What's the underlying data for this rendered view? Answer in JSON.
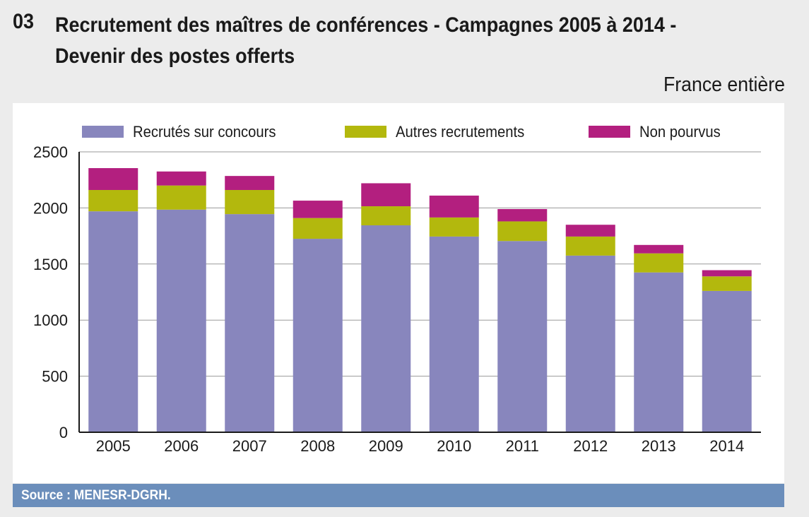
{
  "header": {
    "figure_number": "03",
    "title_line1": "Recrutement des maîtres de conférences - Campagnes 2005 à 2014 -",
    "title_line2": "Devenir des postes offerts",
    "subtitle": "France entière"
  },
  "footer": {
    "source": "Source : MENESR-DGRH."
  },
  "chart_data": {
    "type": "bar",
    "stacked": true,
    "title": "Recrutement des maîtres de conférences - Campagnes 2005 à 2014 - Devenir des postes offerts",
    "subtitle": "France entière",
    "xlabel": "",
    "ylabel": "",
    "ylim": [
      0,
      2500
    ],
    "yticks": [
      "0",
      "500",
      "1000",
      "1500",
      "2000",
      "2500"
    ],
    "grid": true,
    "legend_position": "top",
    "categories": [
      "2005",
      "2006",
      "2007",
      "2008",
      "2009",
      "2010",
      "2011",
      "2012",
      "2013",
      "2014"
    ],
    "series": [
      {
        "name": "Recrutés sur concours",
        "color": "#8886bd",
        "values": [
          1970,
          1985,
          1945,
          1725,
          1845,
          1745,
          1705,
          1575,
          1425,
          1260
        ]
      },
      {
        "name": "Autres recrutements",
        "color": "#b3b80d",
        "values": [
          190,
          215,
          215,
          185,
          170,
          170,
          175,
          170,
          170,
          130
        ]
      },
      {
        "name": "Non pourvus",
        "color": "#b31f7f",
        "values": [
          195,
          125,
          125,
          155,
          205,
          195,
          110,
          105,
          75,
          55
        ]
      }
    ]
  }
}
